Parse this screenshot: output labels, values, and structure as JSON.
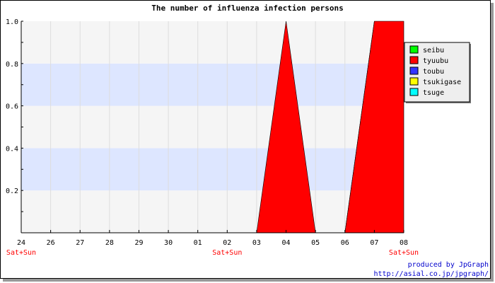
{
  "chart_data": {
    "type": "area",
    "title": "The number of influenza infection persons",
    "xlabel": "",
    "ylabel": "",
    "x": [
      "24",
      "26",
      "27",
      "28",
      "29",
      "30",
      "01",
      "02",
      "03",
      "04",
      "05",
      "06",
      "07",
      "08"
    ],
    "weekend_labels": [
      {
        "x": "24",
        "text": "Sat+Sun"
      },
      {
        "x": "02",
        "text": "Sat+Sun"
      },
      {
        "x": "08",
        "text": "Sat+Sun"
      }
    ],
    "y_ticks": [
      "0.2",
      "0.4",
      "0.6",
      "0.8",
      "1.0"
    ],
    "ylim": [
      0,
      1.0
    ],
    "grid": true,
    "legend_position": "right",
    "series": [
      {
        "name": "seibu",
        "color": "#00ff00",
        "values": [
          0,
          0,
          0,
          0,
          0,
          0,
          0,
          0,
          0,
          0,
          0,
          0,
          1,
          0
        ]
      },
      {
        "name": "tyuubu",
        "color": "#ff0000",
        "values": [
          0,
          0,
          0,
          0,
          0,
          0,
          0,
          0,
          0,
          1,
          0,
          0,
          1,
          1
        ]
      },
      {
        "name": "toubu",
        "color": "#3333ff",
        "values": [
          0,
          0,
          0,
          0,
          0,
          0,
          0,
          0,
          0,
          0,
          0,
          0,
          0,
          0
        ]
      },
      {
        "name": "tsukigase",
        "color": "#ffff00",
        "values": [
          0,
          0,
          0,
          0,
          0,
          0,
          0,
          0,
          0,
          0,
          0,
          0,
          0,
          0
        ]
      },
      {
        "name": "tsuge",
        "color": "#00ffff",
        "values": [
          0,
          0,
          0,
          0,
          0,
          0,
          0,
          0,
          0,
          0,
          0,
          0,
          0,
          0
        ]
      }
    ]
  },
  "credits": {
    "line1": "produced by JpGraph",
    "line2": "http://asial.co.jp/jpgraph/"
  }
}
